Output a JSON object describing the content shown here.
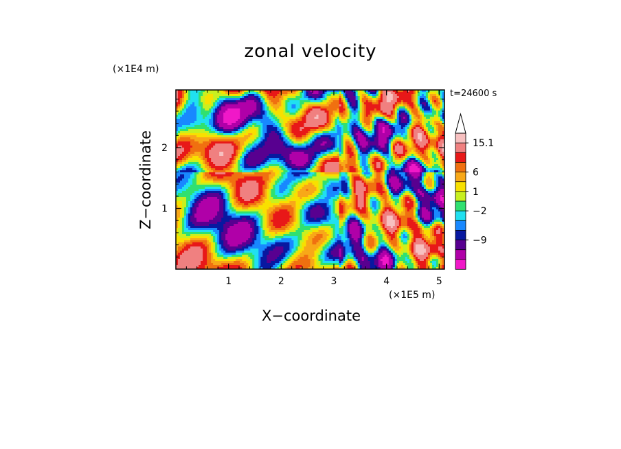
{
  "chart_data": {
    "type": "heatmap",
    "title": "zonal velocity",
    "xlabel": "X−coordinate",
    "ylabel": "Z−coordinate",
    "x_unit": "(×1E5 m)",
    "y_unit": "(×1E4 m)",
    "time_label": "t=24600 s",
    "xlim": [
      0,
      5.1
    ],
    "ylim": [
      0,
      2.95
    ],
    "x_ticks": [
      "1",
      "2",
      "3",
      "4",
      "5"
    ],
    "y_ticks": [
      "1",
      "2"
    ],
    "colorbar": {
      "labels": [
        "15.1",
        "6",
        "1",
        "−2",
        "−9"
      ],
      "levels_high_to_low": [
        {
          "color": "#f7c0c0"
        },
        {
          "color": "#f08080"
        },
        {
          "color": "#e81818"
        },
        {
          "color": "#f07010"
        },
        {
          "color": "#f8a818"
        },
        {
          "color": "#f8e000"
        },
        {
          "color": "#c8f020"
        },
        {
          "color": "#30e070"
        },
        {
          "color": "#20e0f0"
        },
        {
          "color": "#1888ff"
        },
        {
          "color": "#0818a0"
        },
        {
          "color": "#580090"
        },
        {
          "color": "#b000a8"
        },
        {
          "color": "#f018c8"
        }
      ],
      "extend": "max"
    }
  }
}
